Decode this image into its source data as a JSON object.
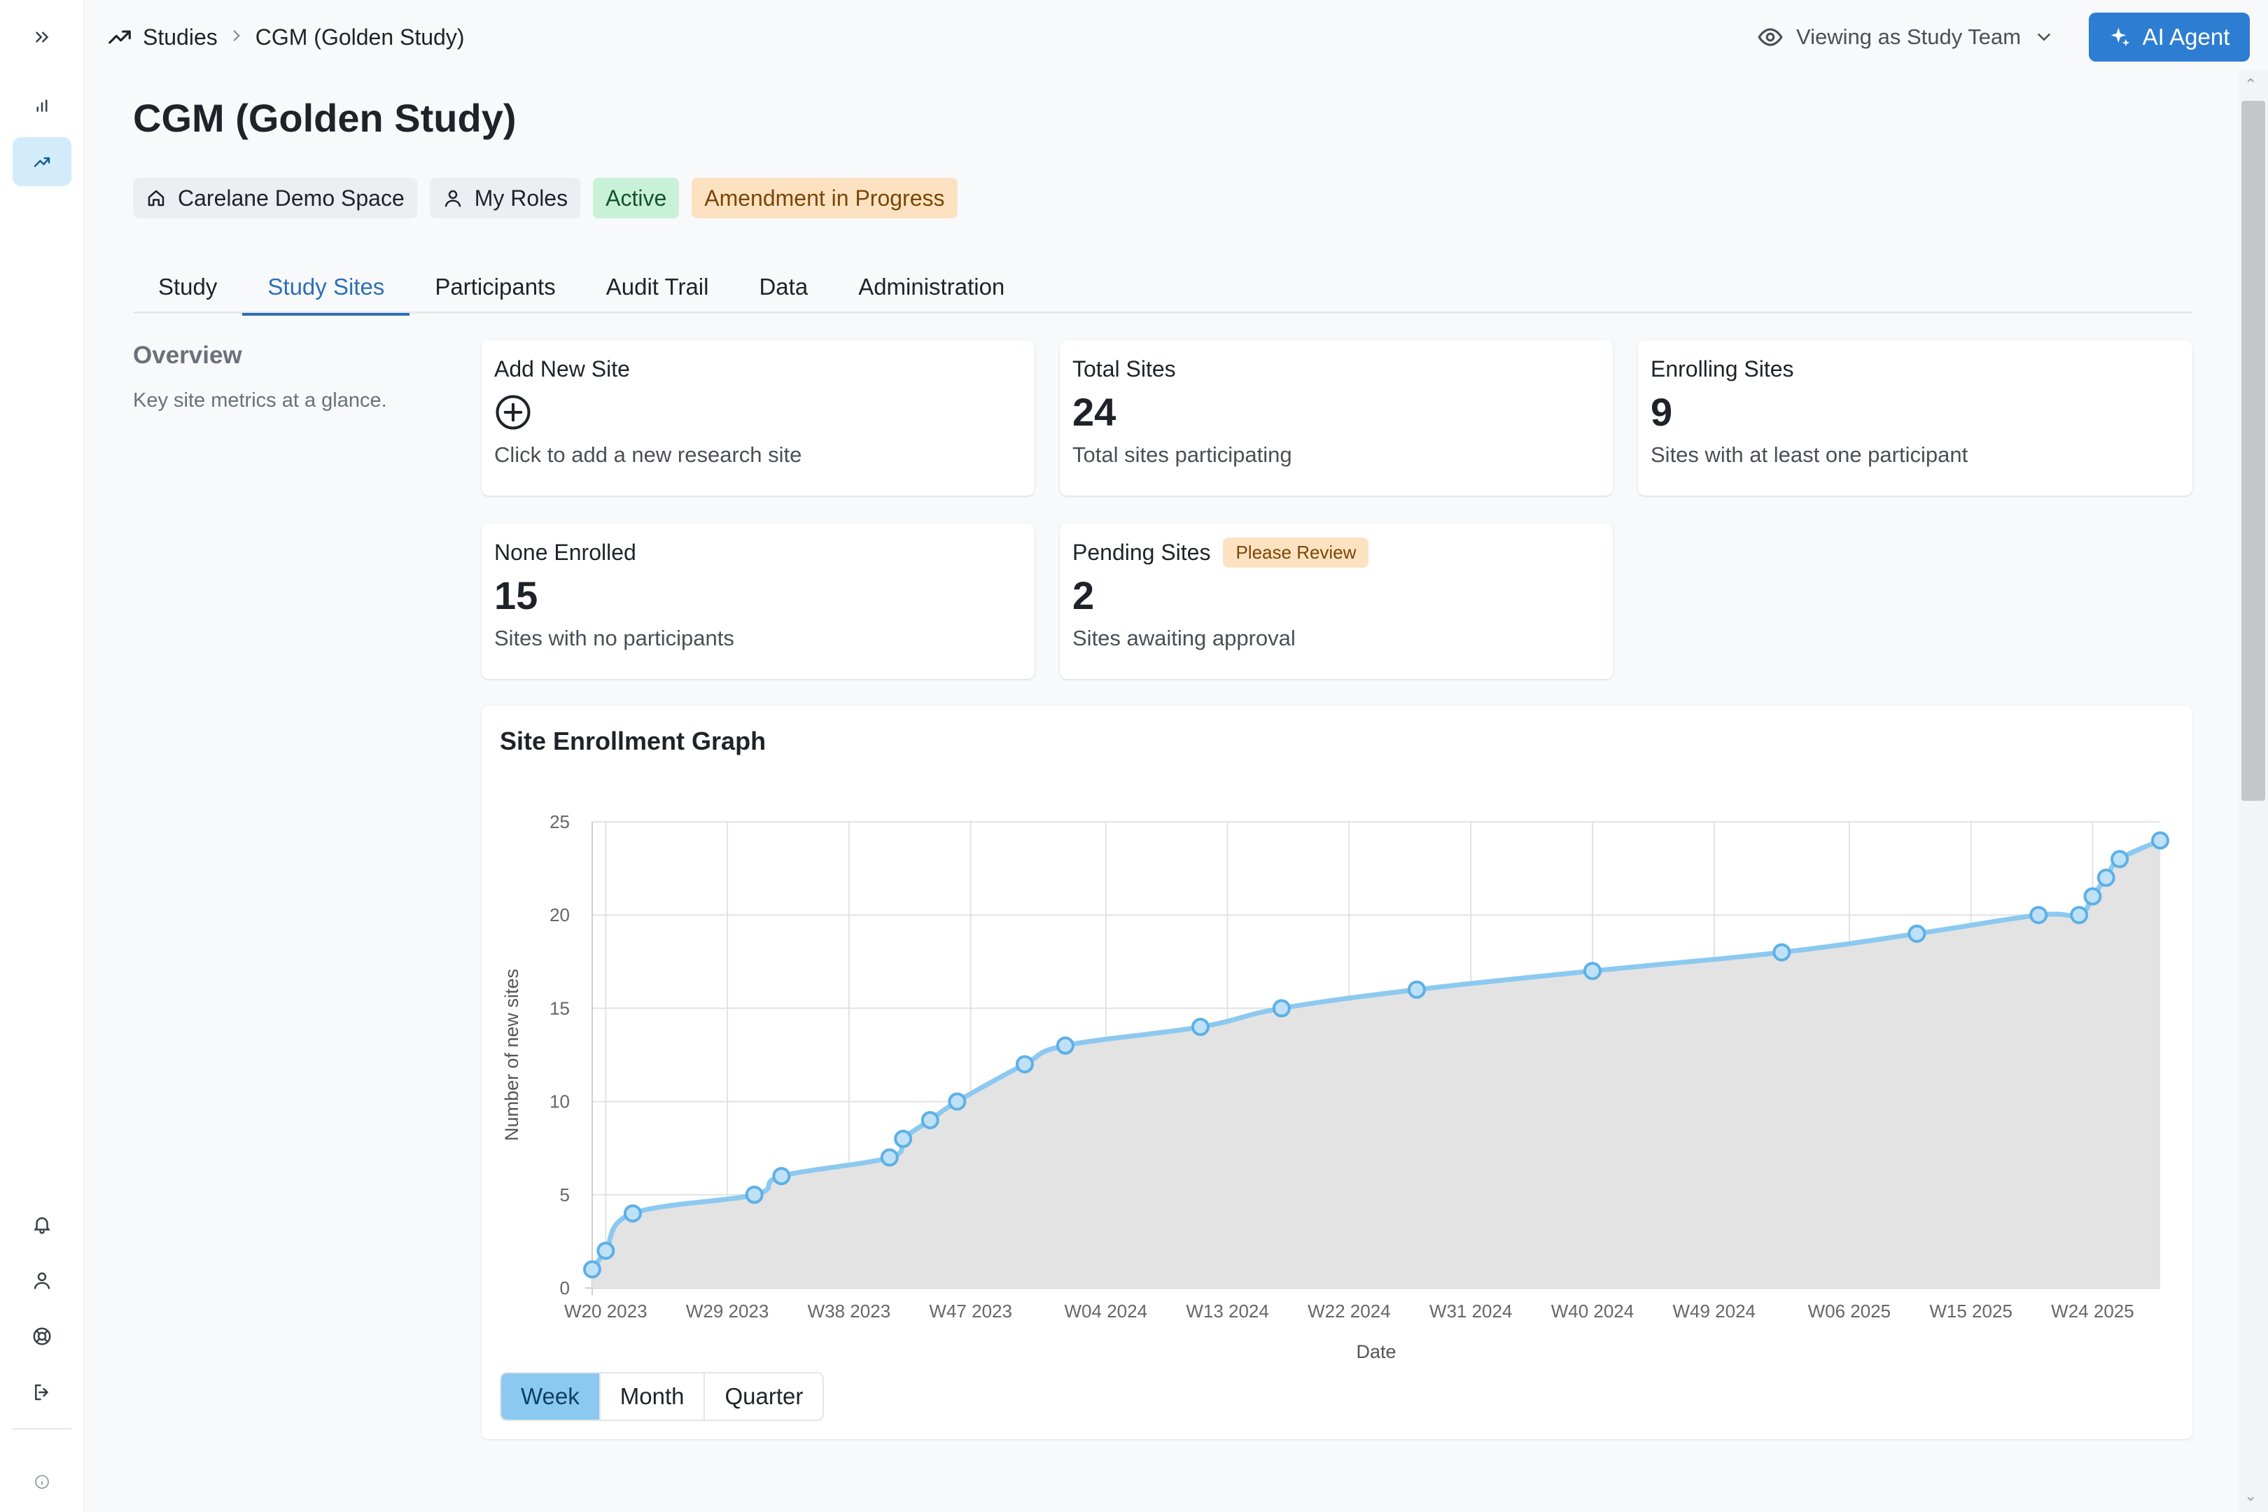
{
  "breadcrumb": {
    "root": "Studies",
    "current": "CGM (Golden Study)"
  },
  "viewing": {
    "label": "Viewing as Study Team"
  },
  "ai_button": {
    "label": "AI Agent"
  },
  "page": {
    "title": "CGM (Golden Study)"
  },
  "chips": {
    "space": "Carelane Demo Space",
    "roles": "My Roles",
    "status": "Active",
    "amendment": "Amendment in Progress"
  },
  "tabs": [
    "Study",
    "Study Sites",
    "Participants",
    "Audit Trail",
    "Data",
    "Administration"
  ],
  "active_tab": "Study Sites",
  "overview": {
    "title": "Overview",
    "subtitle": "Key site metrics at a glance."
  },
  "cards": {
    "add": {
      "title": "Add New Site",
      "desc": "Click to add a new research site"
    },
    "total": {
      "title": "Total Sites",
      "value": "24",
      "desc": "Total sites participating"
    },
    "enrolling": {
      "title": "Enrolling Sites",
      "value": "9",
      "desc": "Sites with at least one participant"
    },
    "none": {
      "title": "None Enrolled",
      "value": "15",
      "desc": "Sites with no participants"
    },
    "pending": {
      "title": "Pending Sites",
      "badge": "Please Review",
      "value": "2",
      "desc": "Sites awaiting approval"
    }
  },
  "granularity": {
    "options": [
      "Week",
      "Month",
      "Quarter"
    ],
    "selected": "Week"
  },
  "colors": {
    "accent": "#2d7dd2",
    "line": "#8cc9f0",
    "fill": "#e3e3e3",
    "active_chip": "#c9f1d8",
    "amber_chip": "#fde2c1"
  },
  "chart_data": {
    "type": "area",
    "title": "Site Enrollment Graph",
    "xlabel": "Date",
    "ylabel": "Number of new sites",
    "ylim": [
      0,
      25
    ],
    "yticks": [
      0,
      5,
      10,
      15,
      20,
      25
    ],
    "xticks": [
      "W20 2023",
      "W29 2023",
      "W38 2023",
      "W47 2023",
      "W04 2024",
      "W13 2024",
      "W22 2024",
      "W31 2024",
      "W40 2024",
      "W49 2024",
      "W06 2025",
      "W15 2025",
      "W24 2025"
    ],
    "grid": true,
    "series": [
      {
        "points": [
          {
            "x": "W19 2023",
            "y": 1
          },
          {
            "x": "W20 2023",
            "y": 2
          },
          {
            "x": "W22 2023",
            "y": 4
          },
          {
            "x": "W31 2023",
            "y": 5
          },
          {
            "x": "W33 2023",
            "y": 6
          },
          {
            "x": "W41 2023",
            "y": 7
          },
          {
            "x": "W42 2023",
            "y": 8
          },
          {
            "x": "W44 2023",
            "y": 9
          },
          {
            "x": "W46 2023",
            "y": 10
          },
          {
            "x": "W51 2023",
            "y": 12
          },
          {
            "x": "W01 2024",
            "y": 13
          },
          {
            "x": "W11 2024",
            "y": 14
          },
          {
            "x": "W17 2024",
            "y": 15
          },
          {
            "x": "W27 2024",
            "y": 16
          },
          {
            "x": "W40 2024",
            "y": 17
          },
          {
            "x": "W54 2024",
            "y": 18
          },
          {
            "x": "W11 2025",
            "y": 19
          },
          {
            "x": "W20 2025",
            "y": 20
          },
          {
            "x": "W23 2025",
            "y": 20
          },
          {
            "x": "W24 2025",
            "y": 21
          },
          {
            "x": "W25 2025",
            "y": 22
          },
          {
            "x": "W26 2025",
            "y": 23
          },
          {
            "x": "W29 2025",
            "y": 24
          }
        ]
      }
    ]
  }
}
